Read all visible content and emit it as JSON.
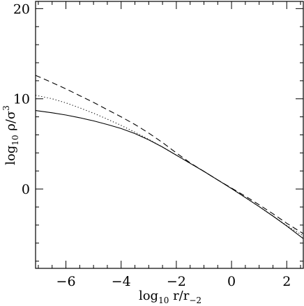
{
  "chart_data": {
    "type": "line",
    "title": "",
    "xlabel": {
      "base": "log",
      "sub": "10",
      "main": " r/r",
      "sub2": "−2"
    },
    "ylabel": {
      "base": "log",
      "sub": "10",
      "main": " ρ/σ",
      "sup": "3"
    },
    "xlim": [
      -7.1,
      2.6
    ],
    "ylim": [
      -8.8,
      20.8
    ],
    "x_ticks": [
      -6,
      -4,
      -2,
      0,
      2
    ],
    "x_tick_labels": [
      "−6",
      "−4",
      "−2",
      "0",
      "2"
    ],
    "y_ticks": [
      0,
      10,
      20
    ],
    "y_tick_labels": [
      "0",
      "10",
      "20"
    ],
    "grid": false,
    "legend": "none",
    "series": [
      {
        "style": "solid",
        "x": [
          -7.1,
          -6.5,
          -6.0,
          -5.5,
          -5.0,
          -4.5,
          -4.0,
          -3.5,
          -3.0,
          -2.5,
          -2.0,
          -1.5,
          -1.0,
          -0.5,
          0.0,
          0.5,
          1.0,
          1.5,
          2.0,
          2.6
        ],
        "y": [
          8.7,
          8.45,
          8.2,
          7.9,
          7.55,
          7.15,
          6.7,
          6.15,
          5.45,
          4.65,
          3.75,
          2.85,
          1.95,
          1.0,
          0.05,
          -0.95,
          -1.95,
          -3.0,
          -4.1,
          -5.5
        ]
      },
      {
        "style": "dotted",
        "x": [
          -7.1,
          -6.5,
          -6.0,
          -5.5,
          -5.0,
          -4.5,
          -4.0,
          -3.5,
          -3.0,
          -2.5,
          -2.0,
          -1.5,
          -1.0,
          -0.5,
          0.0,
          0.5,
          1.0,
          1.5,
          2.0,
          2.6
        ],
        "y": [
          10.4,
          10.0,
          9.55,
          9.0,
          8.4,
          7.75,
          7.05,
          6.3,
          5.5,
          4.65,
          3.75,
          2.85,
          1.95,
          1.0,
          0.05,
          -0.95,
          -1.95,
          -3.0,
          -4.05,
          -5.2
        ]
      },
      {
        "style": "dashed",
        "x": [
          -7.1,
          -6.5,
          -6.0,
          -5.5,
          -5.0,
          -4.5,
          -4.0,
          -3.5,
          -3.0,
          -2.5,
          -2.0,
          -1.5,
          -1.0,
          -0.5,
          0.0,
          0.5,
          1.0,
          1.5,
          2.0,
          2.6
        ],
        "y": [
          12.6,
          11.8,
          11.1,
          10.35,
          9.6,
          8.8,
          8.0,
          7.15,
          6.2,
          5.15,
          4.0,
          2.9,
          1.95,
          1.0,
          0.1,
          -0.8,
          -1.75,
          -2.75,
          -3.8,
          -4.95
        ]
      }
    ]
  }
}
